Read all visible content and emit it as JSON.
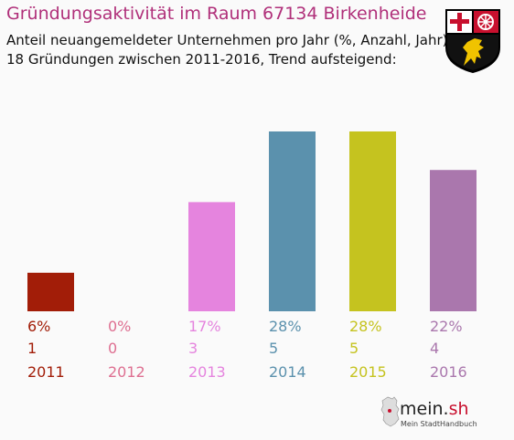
{
  "header": {
    "title": "Gründungsaktivität im Raum 67134 Birkenheide",
    "subtitle_line1": "Anteil neuangemeldeter Unternehmen pro Jahr (%, Anzahl, Jahr)",
    "subtitle_line2": "18 Gründungen zwischen 2011-2016, Trend aufsteigend:"
  },
  "crest": {
    "icon": "rheinland-pfalz-coat-of-arms-icon"
  },
  "chart_data": {
    "type": "bar",
    "categories": [
      "2011",
      "2012",
      "2013",
      "2014",
      "2015",
      "2016"
    ],
    "values": [
      6,
      0,
      17,
      28,
      28,
      22
    ],
    "counts": [
      1,
      0,
      3,
      5,
      5,
      4
    ],
    "percent_labels": [
      "6%",
      "0%",
      "17%",
      "28%",
      "28%",
      "22%"
    ],
    "count_labels": [
      "1",
      "0",
      "3",
      "5",
      "5",
      "4"
    ],
    "colors": [
      "#a21d08",
      "#de6f91",
      "#e584de",
      "#5b91ad",
      "#c5c31f",
      "#aa77ad"
    ],
    "title": "Gründungsaktivität im Raum 67134 Birkenheide",
    "ylim": [
      0,
      28
    ],
    "grid": false,
    "legend": "none"
  },
  "logo": {
    "brand_main": "mein.",
    "brand_accent": "sh",
    "tagline": "Mein StadtHandbuch",
    "icon": "germany-map-icon"
  }
}
